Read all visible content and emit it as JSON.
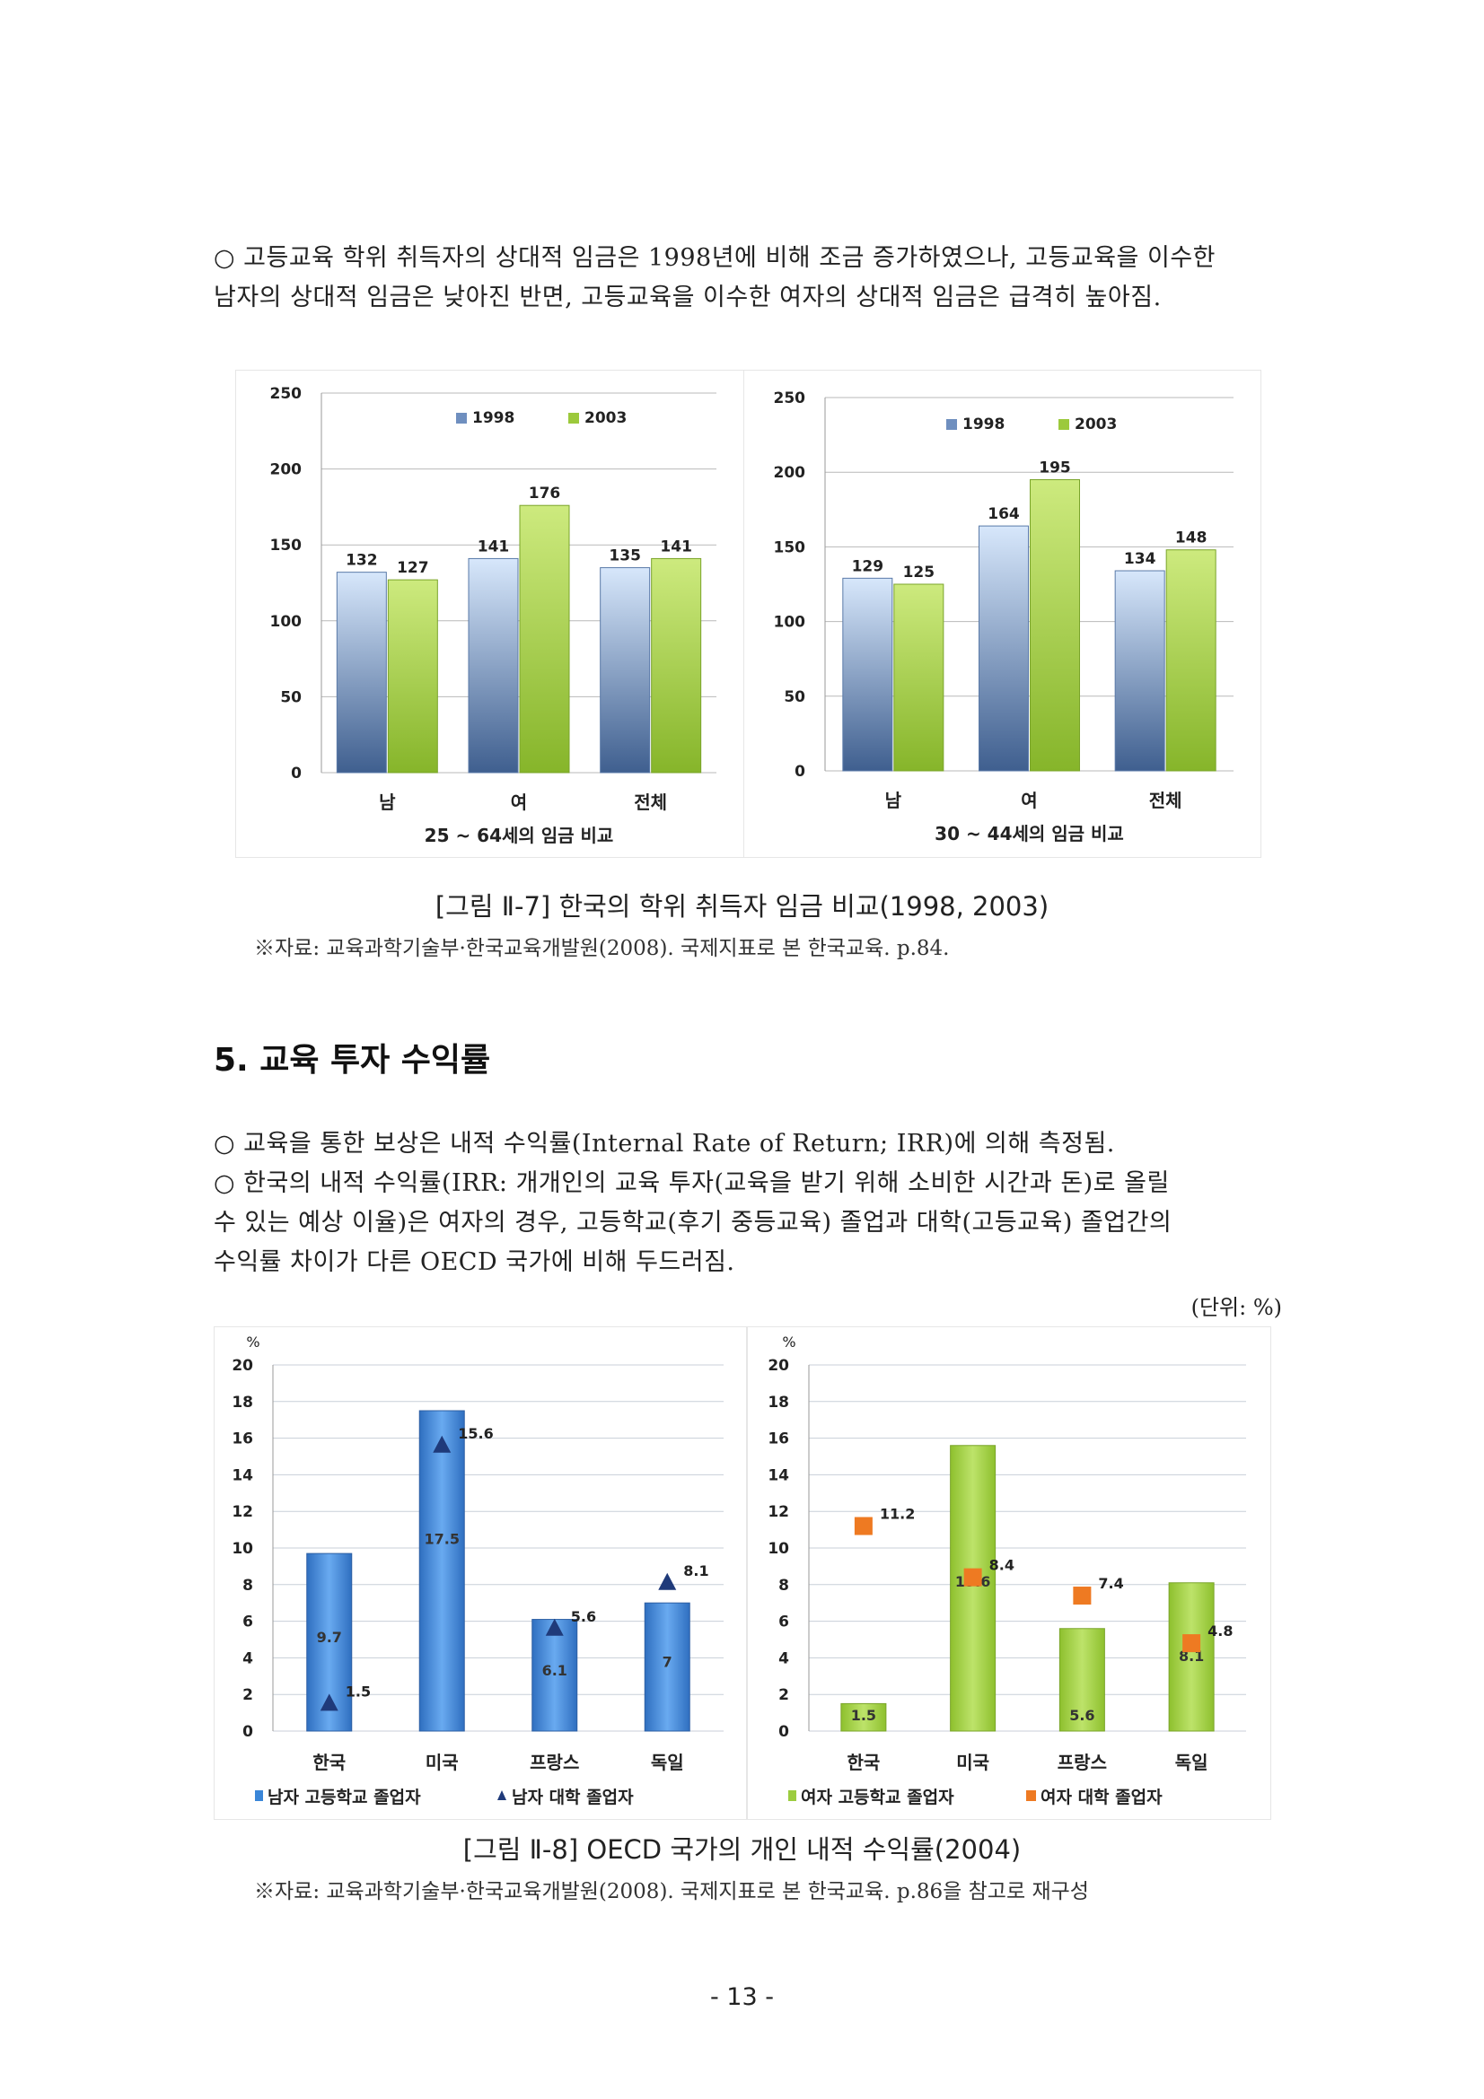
{
  "intro": {
    "lines": [
      "○ 고등교육 학위 취득자의 상대적 임금은 1998년에 비해 조금 증가하였으나, 고등교육을 이수한",
      "남자의 상대적 임금은 낮아진 반면, 고등교육을 이수한 여자의 상대적 임금은 급격히 높아짐."
    ]
  },
  "figure7": {
    "caption": "[그림 Ⅱ-7] 한국의 학위 취득자 임금 비교(1998, 2003)",
    "source": "※자료: 교육과학기술부·한국교육개발원(2008). 국제지표로 본 한국교육. p.84."
  },
  "section": {
    "heading": "5. 교육 투자 수익률",
    "lines": [
      "○ 교육을 통한 보상은 내적 수익률(Internal Rate of Return; IRR)에 의해 측정됨.",
      "○ 한국의 내적 수익률(IRR: 개개인의 교육 투자(교육을 받기 위해 소비한 시간과 돈)로 올릴",
      "수 있는 예상 이율)은 여자의 경우, 고등학교(후기 중등교육) 졸업과 대학(고등교육) 졸업간의",
      "수익률 차이가 다른 OECD 국가에 비해 두드러짐."
    ],
    "unit": "(단위: %)"
  },
  "figure8": {
    "caption": "[그림 Ⅱ-8] OECD 국가의 개인 내적 수익률(2004)",
    "source": "※자료: 교육과학기술부·한국교육개발원(2008). 국제지표로 본 한국교육. p.86을 참고로 재구성"
  },
  "page_number": "- 13 -",
  "colors": {
    "blue_bar": "#7fa3cf",
    "green_bar": "#9cc93c",
    "ref_blue": "#3a86d8",
    "green2": "#9ccc3f",
    "orange": "#ee7a22",
    "navy": "#1f3a7a"
  },
  "chart_data": [
    {
      "type": "bar",
      "title": "25 ~ 64세의 임금 비교",
      "categories": [
        "남",
        "여",
        "전체"
      ],
      "series": [
        {
          "name": "1998",
          "values": [
            132,
            141,
            135
          ]
        },
        {
          "name": "2003",
          "values": [
            127,
            176,
            141
          ]
        }
      ],
      "ylim": [
        0,
        250
      ],
      "yticks": [
        0,
        50,
        100,
        150,
        200,
        250
      ],
      "grid": true,
      "legend": "top"
    },
    {
      "type": "bar",
      "title": "30 ~ 44세의 임금 비교",
      "categories": [
        "남",
        "여",
        "전체"
      ],
      "series": [
        {
          "name": "1998",
          "values": [
            129,
            164,
            134
          ]
        },
        {
          "name": "2003",
          "values": [
            125,
            195,
            148
          ]
        }
      ],
      "ylim": [
        0,
        250
      ],
      "yticks": [
        0,
        50,
        100,
        150,
        200,
        250
      ],
      "grid": true,
      "legend": "top"
    },
    {
      "type": "bar",
      "ylabel": "%",
      "categories": [
        "한국",
        "미국",
        "프랑스",
        "독일"
      ],
      "series": [
        {
          "name": "남자 고등학교 졸업자",
          "kind": "bar",
          "values": [
            9.7,
            17.5,
            6.1,
            7.0
          ]
        },
        {
          "name": "남자 대학 졸업자",
          "kind": "marker-triangle",
          "values": [
            1.5,
            15.6,
            5.6,
            8.1
          ]
        }
      ],
      "ylim": [
        0,
        20
      ],
      "yticks": [
        0,
        2,
        4,
        6,
        8,
        10,
        12,
        14,
        16,
        18,
        20
      ],
      "grid": true,
      "legend": "bottom"
    },
    {
      "type": "bar",
      "ylabel": "%",
      "categories": [
        "한국",
        "미국",
        "프랑스",
        "독일"
      ],
      "series": [
        {
          "name": "여자 고등학교 졸업자",
          "kind": "bar",
          "values": [
            1.5,
            15.6,
            5.6,
            8.1
          ]
        },
        {
          "name": "여자 대학 졸업자",
          "kind": "marker-square",
          "values": [
            11.2,
            8.4,
            7.4,
            4.8
          ]
        }
      ],
      "ylim": [
        0,
        20
      ],
      "yticks": [
        0,
        2,
        4,
        6,
        8,
        10,
        12,
        14,
        16,
        18,
        20
      ],
      "grid": true,
      "legend": "bottom"
    }
  ]
}
